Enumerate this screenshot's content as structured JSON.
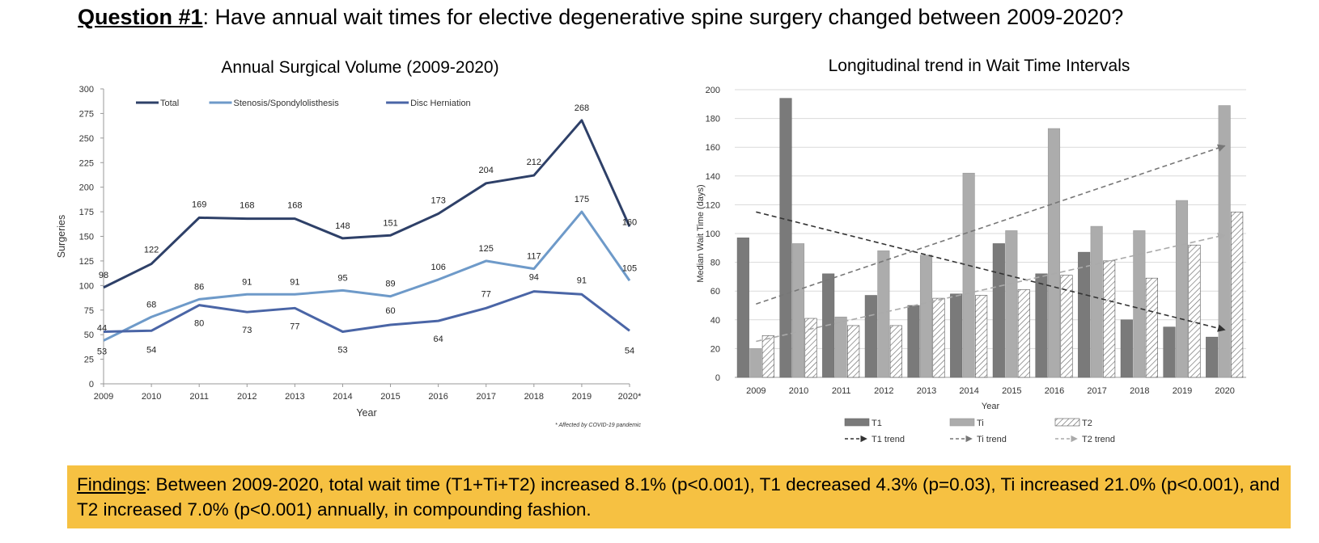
{
  "header": {
    "question_label": "Question #1",
    "question_text": ": Have annual wait times for elective degenerative spine surgery changed between 2009-2020?"
  },
  "chart_data": [
    {
      "type": "line",
      "title": "Annual Surgical Volume (2009-2020)",
      "xlabel": "Year",
      "ylabel": "Surgeries",
      "x": [
        "2009",
        "2010",
        "2011",
        "2012",
        "2013",
        "2014",
        "2015",
        "2016",
        "2017",
        "2018",
        "2019",
        "2020*"
      ],
      "ylim": [
        0,
        300
      ],
      "yticks": [
        0,
        25,
        50,
        75,
        100,
        125,
        150,
        175,
        200,
        225,
        250,
        275,
        300
      ],
      "legend_position": "top-left",
      "footnote": "* Affected by COVID-19 pandemic",
      "series": [
        {
          "name": "Total",
          "color": "#2e4068",
          "values": [
            98,
            122,
            169,
            168,
            168,
            148,
            151,
            173,
            204,
            212,
            268,
            160
          ]
        },
        {
          "name": "Stenosis/Spondylolisthesis",
          "color": "#6e9ac9",
          "values": [
            44,
            68,
            86,
            91,
            91,
            95,
            89,
            106,
            125,
            117,
            175,
            105
          ]
        },
        {
          "name": "Disc Herniation",
          "color": "#4a65a6",
          "values": [
            53,
            54,
            80,
            73,
            77,
            53,
            60,
            64,
            77,
            94,
            91,
            54
          ]
        }
      ]
    },
    {
      "type": "bar",
      "title": "Longitudinal trend in Wait Time Intervals",
      "xlabel": "Year",
      "ylabel": "Median Wait Time (days)",
      "categories": [
        "2009",
        "2010",
        "2011",
        "2012",
        "2013",
        "2014",
        "2015",
        "2016",
        "2017",
        "2018",
        "2019",
        "2020"
      ],
      "ylim": [
        0,
        200
      ],
      "yticks": [
        0,
        20,
        40,
        60,
        80,
        100,
        120,
        140,
        160,
        180,
        200
      ],
      "grid": true,
      "legend_position": "bottom",
      "series": [
        {
          "name": "T1",
          "color": "#7a7a7a",
          "values": [
            97,
            194,
            72,
            57,
            50,
            58,
            93,
            72,
            87,
            40,
            35,
            28
          ]
        },
        {
          "name": "Ti",
          "color": "#aeaeae",
          "values": [
            20,
            93,
            42,
            88,
            85,
            142,
            102,
            173,
            105,
            102,
            123,
            189
          ]
        },
        {
          "name": "T2",
          "color": "hatched",
          "values": [
            29,
            41,
            36,
            36,
            55,
            57,
            61,
            71,
            81,
            69,
            92,
            115
          ]
        }
      ],
      "trends": [
        {
          "name": "T1 trend",
          "color": "#333333",
          "start": 115,
          "end": 33
        },
        {
          "name": "Ti trend",
          "color": "#777777",
          "start": 51,
          "end": 161
        },
        {
          "name": "T2 trend",
          "color": "#aaaaaa",
          "start": 25,
          "end": 99
        }
      ]
    }
  ],
  "findings": {
    "label": "Findings",
    "text": ": Between 2009-2020, total wait time (T1+Ti+T2) increased 8.1% (p<0.001), T1 decreased 4.3% (p=0.03), Ti increased 21.0% (p<0.001), and T2 increased 7.0% (p<0.001) annually, in compounding fashion."
  }
}
